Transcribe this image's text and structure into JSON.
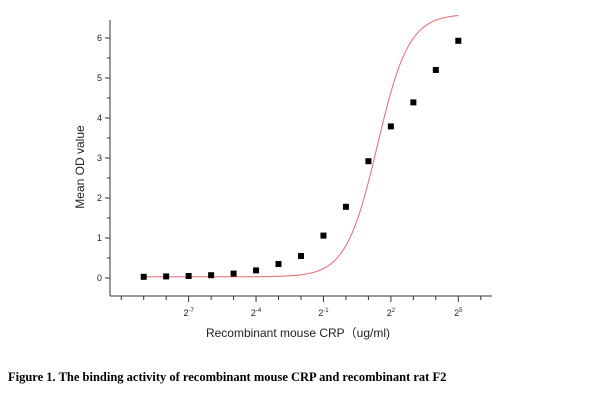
{
  "caption": "Figure 1. The binding activity of recombinant mouse CRP and recombinant rat F2",
  "chart_data": {
    "type": "scatter",
    "title": "",
    "xlabel": "Recombinant mouse CRP（ug/ml)",
    "ylabel": "Mean OD value",
    "x_scale": "log2",
    "xlim_exponent": [
      -10.5,
      6.5
    ],
    "ylim": [
      -0.45,
      6.45
    ],
    "grid": false,
    "legend": "none",
    "x_tick_labels": [
      {
        "base": "2",
        "exp": "-7"
      },
      {
        "base": "2",
        "exp": "-4"
      },
      {
        "base": "2",
        "exp": "-1"
      },
      {
        "base": "2",
        "exp": "2"
      },
      {
        "base": "2",
        "exp": "5"
      }
    ],
    "x_major_tick_exponents": [
      -7,
      -4,
      -1,
      2,
      5
    ],
    "x_minor_tick_exponents": [
      -10,
      -9,
      -8,
      -6,
      -5,
      -3,
      -2,
      0,
      1,
      3,
      4,
      6
    ],
    "y_ticks": [
      0,
      1,
      2,
      3,
      4,
      5,
      6
    ],
    "y_minor_ticks": [
      0.5,
      1.5,
      2.5,
      3.5,
      4.5,
      5.5
    ],
    "marker_color": "#000000",
    "curve_color": "#e8767a",
    "series": [
      {
        "marker": "square",
        "points": [
          {
            "x_exp": -9,
            "y": 0.03
          },
          {
            "x_exp": -8,
            "y": 0.04
          },
          {
            "x_exp": -7,
            "y": 0.05
          },
          {
            "x_exp": -6,
            "y": 0.07
          },
          {
            "x_exp": -5,
            "y": 0.11
          },
          {
            "x_exp": -4,
            "y": 0.19
          },
          {
            "x_exp": -3,
            "y": 0.35
          },
          {
            "x_exp": -2,
            "y": 0.55
          },
          {
            "x_exp": -1,
            "y": 1.06
          },
          {
            "x_exp": 0,
            "y": 1.78
          },
          {
            "x_exp": 1,
            "y": 2.92
          },
          {
            "x_exp": 2,
            "y": 3.79
          },
          {
            "x_exp": 3,
            "y": 4.39
          },
          {
            "x_exp": 4,
            "y": 5.2
          },
          {
            "x_exp": 5,
            "y": 5.93
          }
        ]
      }
    ],
    "fit_curve": {
      "model": "four-parameter logistic",
      "bottom": 0.03,
      "top": 6.6,
      "ec50_exp": 1.4,
      "slope_per_exp": 0.65
    }
  }
}
